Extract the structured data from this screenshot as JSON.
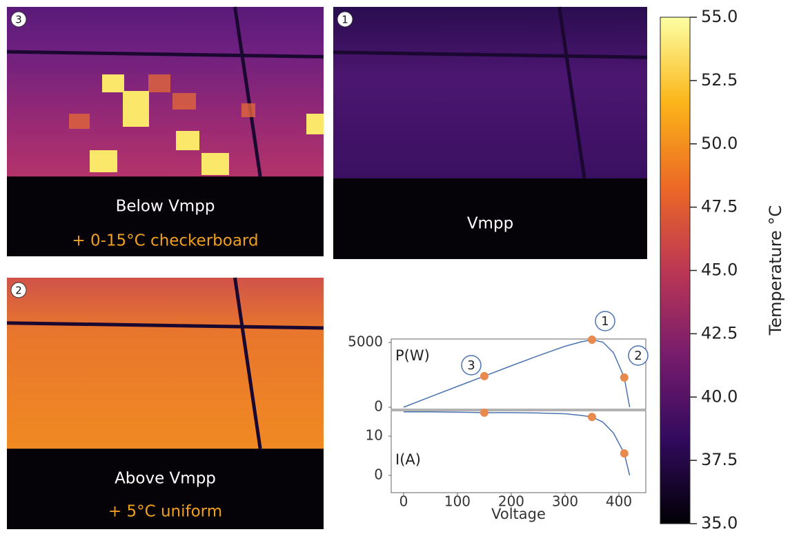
{
  "panels": [
    {
      "badge": "3",
      "caption": "Below Vmpp",
      "note": "+ 0-15°C checkerboard"
    },
    {
      "badge": "1",
      "caption": "Vmpp"
    },
    {
      "badge": "2",
      "caption": "Above Vmpp",
      "note": "+ 5°C uniform"
    }
  ],
  "chart_data": [
    {
      "type": "line",
      "ylabel": "P(W)",
      "x": [
        0,
        50,
        100,
        150,
        200,
        250,
        300,
        330,
        350,
        370,
        390,
        410,
        420
      ],
      "series": [
        {
          "color": "#4a72b0",
          "values": [
            0,
            810,
            1610,
            2400,
            3200,
            3975,
            4710,
            5050,
            5215,
            5030,
            4210,
            2296,
            0
          ]
        }
      ],
      "points": {
        "x": [
          150,
          350,
          410
        ],
        "values": [
          2400,
          5215,
          2296
        ],
        "color": "#e8894d"
      },
      "annotations": [
        "3",
        "1",
        "2"
      ],
      "xlim": [
        -23,
        450
      ],
      "ylim": [
        -160,
        5270
      ],
      "yticks": [
        0,
        5000
      ]
    },
    {
      "type": "line",
      "ylabel": "I(A)",
      "xlabel": "Voltage",
      "x": [
        0,
        50,
        100,
        150,
        200,
        250,
        300,
        330,
        350,
        370,
        390,
        410,
        420
      ],
      "series": [
        {
          "color": "#4a72b0",
          "values": [
            16.2,
            16.2,
            16.1,
            16,
            16,
            15.9,
            15.7,
            15.3,
            14.9,
            13.6,
            10.8,
            5.6,
            0
          ]
        }
      ],
      "points": {
        "x": [
          150,
          350,
          410
        ],
        "values": [
          16,
          14.9,
          5.6
        ],
        "color": "#e8894d"
      },
      "xlim": [
        -23,
        450
      ],
      "ylim": [
        -4.4,
        16.5
      ],
      "xticks": [
        0,
        100,
        200,
        300,
        400
      ],
      "yticks": [
        0,
        10
      ]
    },
    {
      "type": "colorbar",
      "label": "Temperature °C",
      "ylim": [
        35,
        55
      ],
      "colors": [
        "#000004",
        "#320a5e",
        "#781c6d",
        "#bc3754",
        "#ed6925",
        "#fbb61a",
        "#fcffa4"
      ],
      "yticks": [
        {
          "value": 35,
          "label": "35.0"
        },
        {
          "value": 37.5,
          "label": "37.5"
        },
        {
          "value": 40,
          "label": "40.0"
        },
        {
          "value": 42.5,
          "label": "42.5"
        },
        {
          "value": 45,
          "label": "45.0"
        },
        {
          "value": 47.5,
          "label": "47.5"
        },
        {
          "value": 50,
          "label": "50.0"
        },
        {
          "value": 52.5,
          "label": "52.5"
        },
        {
          "value": 55,
          "label": "55.0"
        }
      ]
    }
  ]
}
